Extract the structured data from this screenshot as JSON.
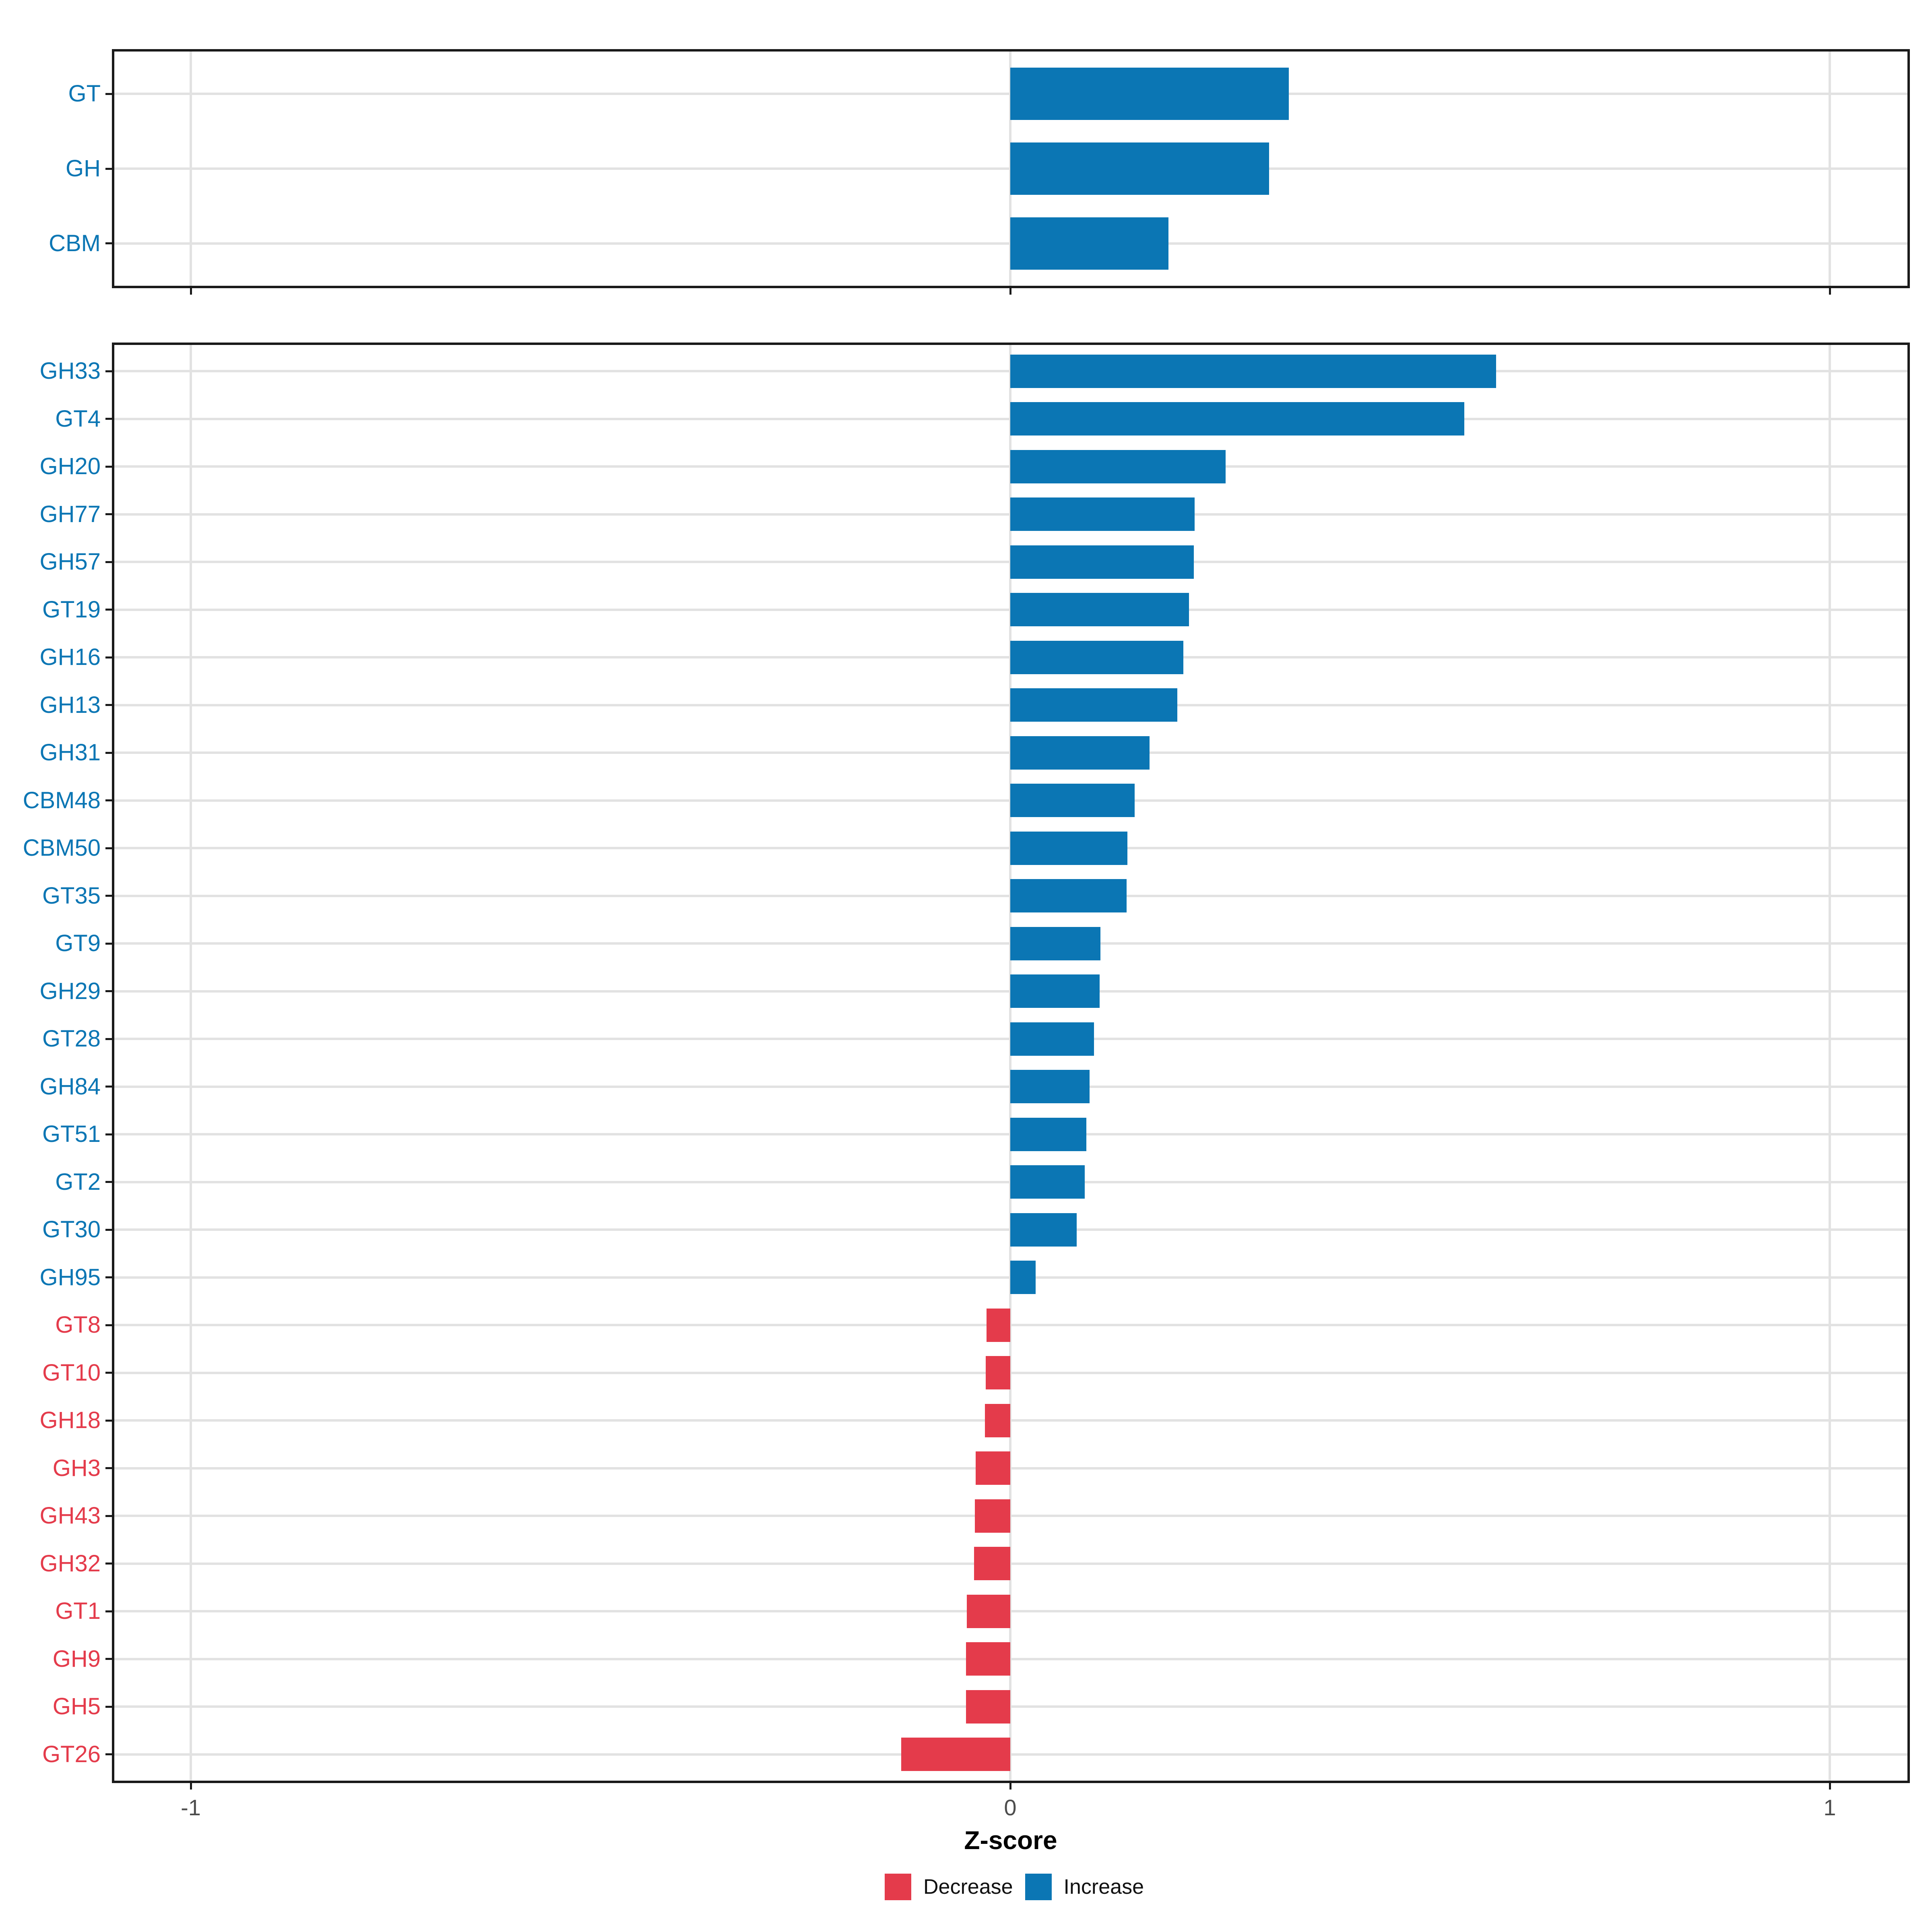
{
  "chart_data": {
    "type": "bar",
    "orientation": "horizontal",
    "title": "",
    "xlabel": "Z-score",
    "ylabel": "",
    "xlim": [
      -1.097,
      1.097
    ],
    "x_ticks": [
      -1,
      0,
      1
    ],
    "x_tick_labels": [
      "-1",
      "0",
      "1"
    ],
    "grid": true,
    "legend_position": "bottom",
    "colors": {
      "increase": "#0B76B4",
      "decrease": "#E43B4B"
    },
    "legend": {
      "entries": [
        {
          "label": "Decrease",
          "color": "#E43B4B"
        },
        {
          "label": "Increase",
          "color": "#0B76B4"
        }
      ]
    },
    "panels": [
      {
        "name": "summary",
        "categories": [
          "GT",
          "GH",
          "CBM"
        ],
        "values": [
          0.34,
          0.316,
          0.193
        ],
        "directions": [
          "increase",
          "increase",
          "increase"
        ]
      },
      {
        "name": "families",
        "categories": [
          "GH33",
          "GT4",
          "GH20",
          "GH77",
          "GH57",
          "GT19",
          "GH16",
          "GH13",
          "GH31",
          "CBM48",
          "CBM50",
          "GT35",
          "GT9",
          "GH29",
          "GT28",
          "GH84",
          "GT51",
          "GT2",
          "GT30",
          "GH95",
          "GT8",
          "GT10",
          "GH18",
          "GH3",
          "GH43",
          "GH32",
          "GT1",
          "GH9",
          "GH5",
          "GT26"
        ],
        "values": [
          0.593,
          0.554,
          0.263,
          0.225,
          0.224,
          0.218,
          0.211,
          0.204,
          0.17,
          0.152,
          0.143,
          0.142,
          0.11,
          0.109,
          0.102,
          0.097,
          0.093,
          0.091,
          0.081,
          0.031,
          -0.029,
          -0.03,
          -0.031,
          -0.042,
          -0.043,
          -0.044,
          -0.053,
          -0.054,
          -0.054,
          -0.133
        ],
        "directions": [
          "increase",
          "increase",
          "increase",
          "increase",
          "increase",
          "increase",
          "increase",
          "increase",
          "increase",
          "increase",
          "increase",
          "increase",
          "increase",
          "increase",
          "increase",
          "increase",
          "increase",
          "increase",
          "increase",
          "increase",
          "decrease",
          "decrease",
          "decrease",
          "decrease",
          "decrease",
          "decrease",
          "decrease",
          "decrease",
          "decrease",
          "decrease"
        ]
      }
    ]
  }
}
